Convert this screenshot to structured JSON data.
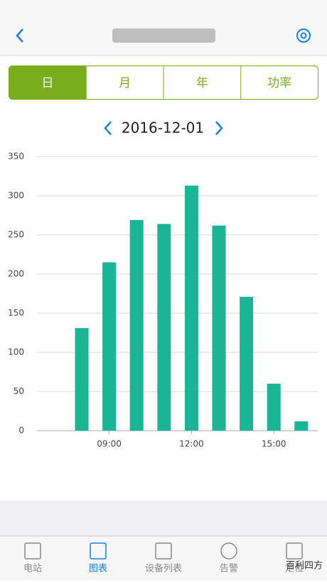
{
  "tabs": [
    "日",
    "月",
    "年",
    "功率"
  ],
  "date": "2016-12-01",
  "chart_data": {
    "type": "bar",
    "categories": [
      null,
      "09:00",
      null,
      null,
      "12:00",
      null,
      null,
      "15:00",
      null
    ],
    "values": [
      131,
      215,
      269,
      264,
      313,
      262,
      171,
      60,
      12
    ],
    "color": "#1bb595",
    "ylim": [
      0,
      350
    ],
    "yticks": [
      0,
      50,
      100,
      150,
      200,
      250,
      300,
      350
    ],
    "grid": true
  },
  "tab_bar": [
    "电站",
    "图表",
    "设备列表",
    "告警",
    "定位"
  ],
  "watermark": "百利四方"
}
